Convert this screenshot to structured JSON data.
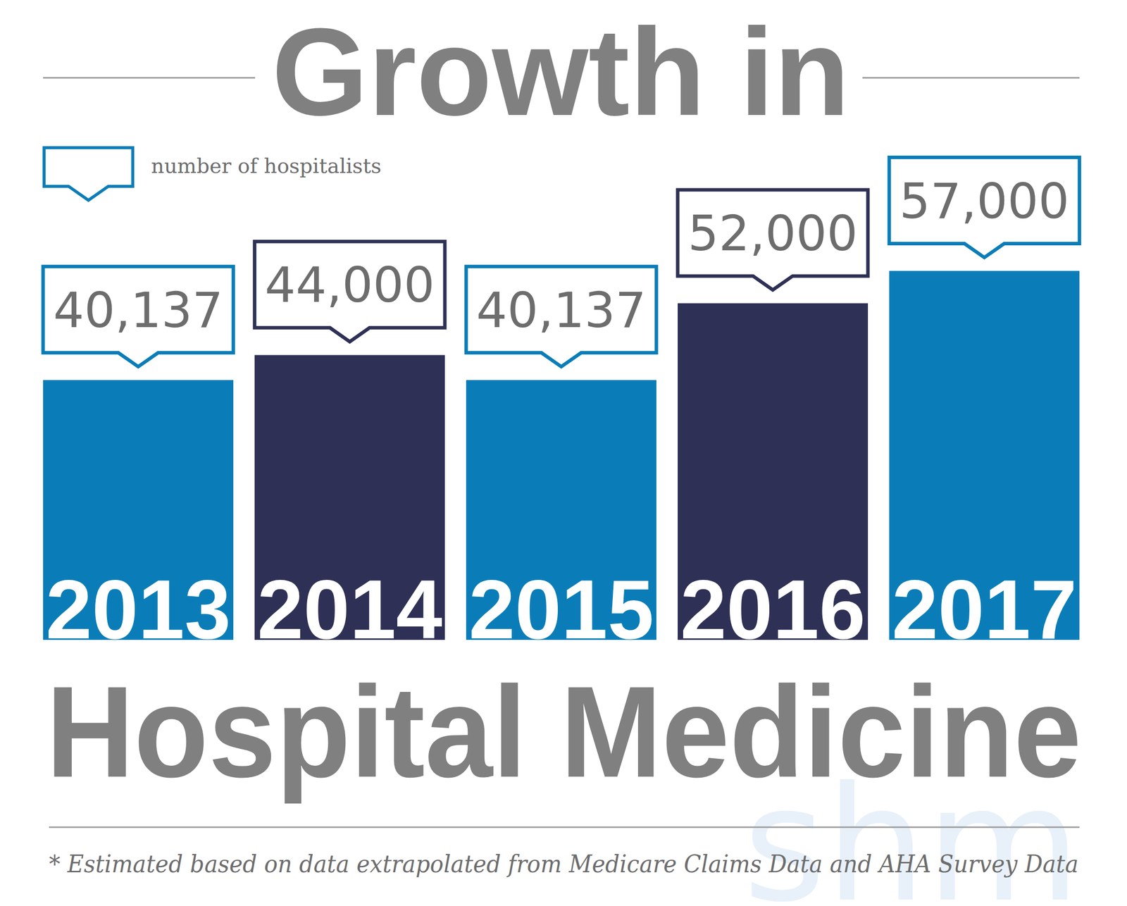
{
  "chart_data": {
    "type": "bar",
    "title": "Growth in",
    "title_bottom": "Hospital Medicine",
    "categories": [
      "2013",
      "2014",
      "2015",
      "2016",
      "2017"
    ],
    "series": [
      {
        "name": "number of hospitalists",
        "color": "#0a7db8",
        "values": [
          40137,
          44000,
          40137,
          52000,
          57000
        ],
        "value_labels": [
          "40,137",
          "44,000",
          "40,137",
          "52,000",
          "57,000"
        ]
      }
    ],
    "colors": [
      "#0a7db8",
      "#2e3055",
      "#0a7db8",
      "#2e3055",
      "#0a7db8"
    ],
    "ylim": [
      0,
      60000
    ],
    "data_labels": true,
    "tick_labels": "x",
    "grid": false,
    "footnote": "* Estimated based on data extrapolated from Medicare Claims Data and AHA Survey Data",
    "watermark": "shm"
  }
}
